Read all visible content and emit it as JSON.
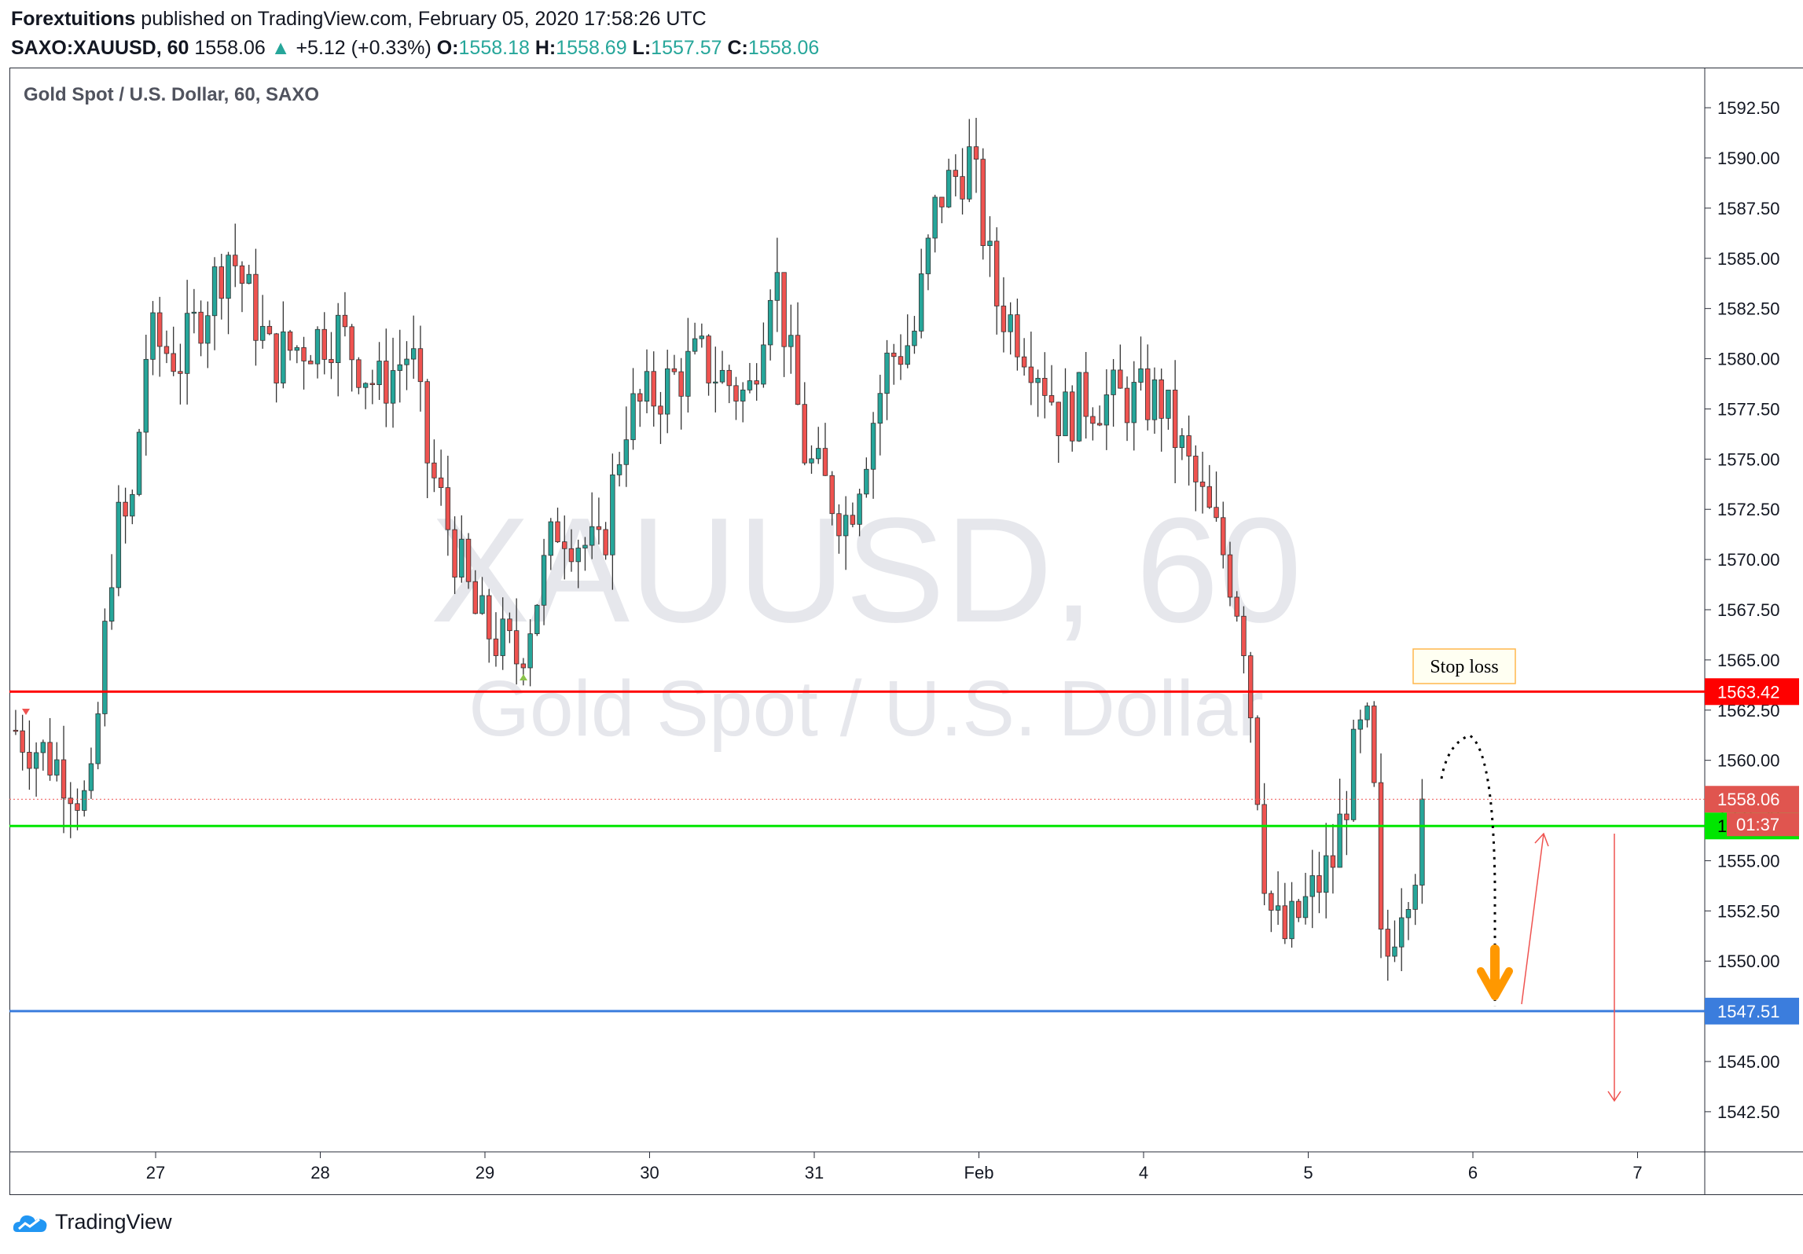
{
  "header": {
    "publisher": "Forextuitions",
    "published_text": "published on TradingView.com, February 05, 2020 17:58:26 UTC",
    "symbol": "SAXO:XAUUSD, 60",
    "last": "1558.06",
    "change_arrow": "▲",
    "change": "+5.12 (+0.33%)",
    "o_label": "O:",
    "o_value": "1558.18",
    "h_label": "H:",
    "h_value": "1558.69",
    "l_label": "L:",
    "l_value": "1557.57",
    "c_label": "C:",
    "c_value": "1558.06"
  },
  "footer": {
    "brand": "TradingView",
    "logo_icon": "tradingview-cloud-icon"
  },
  "colors": {
    "up": "#26a69a",
    "down": "#ef5350",
    "stop_loss_line": "#ff0000",
    "support_line": "#00e600",
    "target_line": "#3b7ddd",
    "arrow": "#ff9800"
  },
  "chart_data": {
    "type": "candlestick",
    "title": "Gold Spot / U.S. Dollar, 60, SAXO",
    "watermark": "XAUUSD, 60",
    "watermark_sub": "Gold Spot / U.S. Dollar",
    "x_ticks": [
      "27",
      "28",
      "29",
      "30",
      "31",
      "Feb",
      "4",
      "5",
      "6",
      "7"
    ],
    "y_ticks": [
      "1592.50",
      "1590.00",
      "1587.50",
      "1585.00",
      "1582.50",
      "1580.00",
      "1577.50",
      "1575.00",
      "1572.50",
      "1570.00",
      "1567.50",
      "1565.00",
      "1562.50",
      "1560.00",
      "1557.50",
      "1555.00",
      "1552.50",
      "1550.00",
      "1547.50",
      "1545.00",
      "1542.50"
    ],
    "y_range": [
      1540.5,
      1594.5
    ],
    "price_labels": [
      {
        "name": "stop-loss",
        "value": 1563.42,
        "text": "1563.42"
      },
      {
        "name": "last-price",
        "value": 1558.06,
        "text": "1558.06"
      },
      {
        "name": "countdown",
        "text": "01:37"
      },
      {
        "name": "support",
        "value": 1556.73,
        "text": "1556.73"
      },
      {
        "name": "target",
        "value": 1547.51,
        "text": "1547.51"
      }
    ],
    "annotations": {
      "stop_loss": "Stop loss"
    },
    "grid": false,
    "legend": "top-left",
    "x_range_days": [
      26.15,
      7.3
    ],
    "segments": [
      {
        "day": 26.15,
        "price": 1561.5
      },
      {
        "day": 26.45,
        "price": 1559.5
      },
      {
        "day": 26.6,
        "price": 1557.5
      },
      {
        "day": 26.75,
        "price": 1571.5
      },
      {
        "day": 26.85,
        "price": 1572
      },
      {
        "day": 26.95,
        "price": 1581
      },
      {
        "day": 27.15,
        "price": 1580
      },
      {
        "day": 27.45,
        "price": 1585.5
      },
      {
        "day": 27.7,
        "price": 1580
      },
      {
        "day": 28.1,
        "price": 1581.5
      },
      {
        "day": 28.35,
        "price": 1578.5
      },
      {
        "day": 28.55,
        "price": 1580.5
      },
      {
        "day": 28.65,
        "price": 1575
      },
      {
        "day": 28.95,
        "price": 1567
      },
      {
        "day": 29.2,
        "price": 1565
      },
      {
        "day": 29.45,
        "price": 1572
      },
      {
        "day": 29.7,
        "price": 1570
      },
      {
        "day": 29.85,
        "price": 1577
      },
      {
        "day": 30.3,
        "price": 1580
      },
      {
        "day": 30.6,
        "price": 1578
      },
      {
        "day": 30.75,
        "price": 1585
      },
      {
        "day": 30.95,
        "price": 1575
      },
      {
        "day": 31.2,
        "price": 1572
      },
      {
        "day": 31.45,
        "price": 1580
      },
      {
        "day": 31.6,
        "price": 1581
      },
      {
        "day": 31.75,
        "price": 1588
      },
      {
        "day": 31.95,
        "price": 1590
      },
      {
        "day": 32.1,
        "price": 1583
      },
      {
        "day": 32.35,
        "price": 1580
      },
      {
        "day": 32.5,
        "price": 1577
      },
      {
        "day": 32.65,
        "price": 1578
      },
      {
        "day": 33.1,
        "price": 1578
      },
      {
        "day": 33.3,
        "price": 1574
      },
      {
        "day": 33.5,
        "price": 1570
      },
      {
        "day": 33.6,
        "price": 1567
      },
      {
        "day": 33.68,
        "price": 1560
      },
      {
        "day": 33.75,
        "price": 1553
      },
      {
        "day": 33.85,
        "price": 1551
      },
      {
        "day": 34.0,
        "price": 1553
      },
      {
        "day": 34.15,
        "price": 1555
      },
      {
        "day": 34.3,
        "price": 1561
      },
      {
        "day": 34.38,
        "price": 1561.5
      },
      {
        "day": 34.45,
        "price": 1549
      },
      {
        "day": 34.55,
        "price": 1553
      },
      {
        "day": 34.65,
        "price": 1555
      },
      {
        "day": 34.72,
        "price": 1558
      }
    ],
    "seed": 7
  }
}
